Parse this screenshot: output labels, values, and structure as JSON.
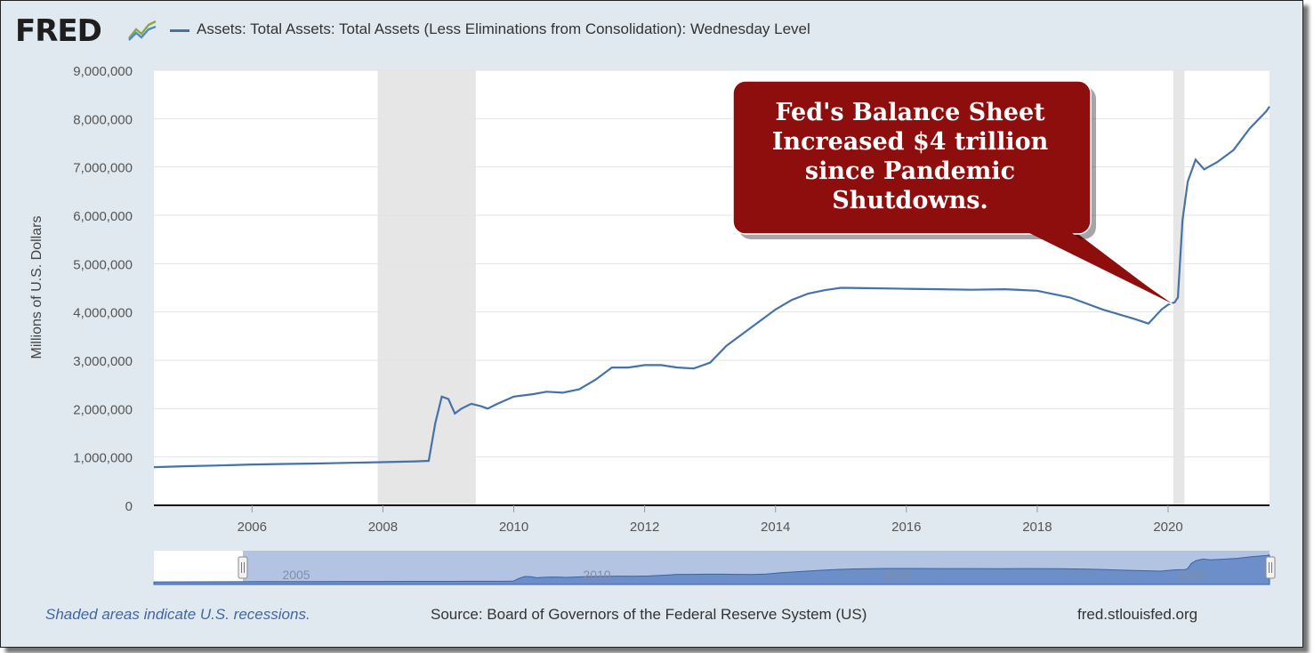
{
  "header": {
    "logo": "FRED",
    "logo_icon": "fred-trend-icon",
    "title": "Assets: Total Assets: Total Assets (Less Eliminations from Consolidation): Wednesday Level"
  },
  "callout": {
    "lines": [
      "Fed's Balance Sheet",
      "Increased $4 trillion",
      "since Pandemic",
      "Shutdowns."
    ],
    "fill": "#8e0d0d"
  },
  "navigator": {
    "labels": [
      "2005",
      "2010",
      "2015",
      "2020"
    ]
  },
  "footer": {
    "note": "Shaded areas indicate U.S. recessions.",
    "source": "Source: Board of Governors of the Federal Reserve System (US)",
    "site": "fred.stlouisfed.org"
  },
  "colors": {
    "series": "#4572a7",
    "recession": "#e6e6e6",
    "background": "#e1e9f0"
  },
  "chart_data": {
    "type": "line",
    "title": "Assets: Total Assets: Total Assets (Less Eliminations from Consolidation): Wednesday Level",
    "xlabel": "",
    "ylabel": "Millions of U.S. Dollars",
    "xlim": [
      2004.5,
      2021.55
    ],
    "ylim": [
      0,
      9000000
    ],
    "x_ticks": [
      2006,
      2008,
      2010,
      2012,
      2014,
      2016,
      2018,
      2020
    ],
    "y_ticks": [
      0,
      1000000,
      2000000,
      3000000,
      4000000,
      5000000,
      6000000,
      7000000,
      8000000,
      9000000
    ],
    "y_tick_labels": [
      "0",
      "1,000,000",
      "2,000,000",
      "3,000,000",
      "4,000,000",
      "5,000,000",
      "6,000,000",
      "7,000,000",
      "8,000,000",
      "9,000,000"
    ],
    "x_tick_labels": [
      "2006",
      "2008",
      "2010",
      "2012",
      "2014",
      "2016",
      "2018",
      "2020"
    ],
    "grid": true,
    "legend": "top-left",
    "recessions": [
      [
        2007.92,
        2009.42
      ],
      [
        2020.08,
        2020.25
      ]
    ],
    "series": [
      {
        "name": "Assets: Total Assets: Total Assets (Less Eliminations from Consolidation): Wednesday Level",
        "x": [
          2004.5,
          2005.0,
          2005.5,
          2006.0,
          2006.5,
          2007.0,
          2007.5,
          2007.9,
          2008.2,
          2008.5,
          2008.7,
          2008.8,
          2008.9,
          2009.0,
          2009.1,
          2009.2,
          2009.35,
          2009.5,
          2009.6,
          2009.75,
          2010.0,
          2010.3,
          2010.5,
          2010.75,
          2011.0,
          2011.25,
          2011.5,
          2011.75,
          2012.0,
          2012.25,
          2012.5,
          2012.75,
          2013.0,
          2013.25,
          2013.5,
          2013.75,
          2014.0,
          2014.25,
          2014.5,
          2014.75,
          2015.0,
          2015.5,
          2016.0,
          2016.5,
          2017.0,
          2017.5,
          2018.0,
          2018.5,
          2019.0,
          2019.5,
          2019.7,
          2019.9,
          2020.0,
          2020.1,
          2020.15,
          2020.22,
          2020.3,
          2020.42,
          2020.55,
          2020.75,
          2021.0,
          2021.25,
          2021.5,
          2021.55
        ],
        "y": [
          790000,
          810000,
          825000,
          845000,
          855000,
          865000,
          880000,
          890000,
          900000,
          910000,
          920000,
          1700000,
          2250000,
          2200000,
          1900000,
          2000000,
          2100000,
          2050000,
          2000000,
          2100000,
          2250000,
          2300000,
          2350000,
          2330000,
          2400000,
          2600000,
          2850000,
          2850000,
          2900000,
          2900000,
          2850000,
          2830000,
          2950000,
          3300000,
          3550000,
          3800000,
          4050000,
          4250000,
          4380000,
          4450000,
          4500000,
          4490000,
          4480000,
          4470000,
          4460000,
          4470000,
          4440000,
          4300000,
          4050000,
          3850000,
          3760000,
          4050000,
          4150000,
          4200000,
          4300000,
          5900000,
          6700000,
          7150000,
          6950000,
          7100000,
          7350000,
          7800000,
          8150000,
          8250000
        ]
      }
    ]
  }
}
